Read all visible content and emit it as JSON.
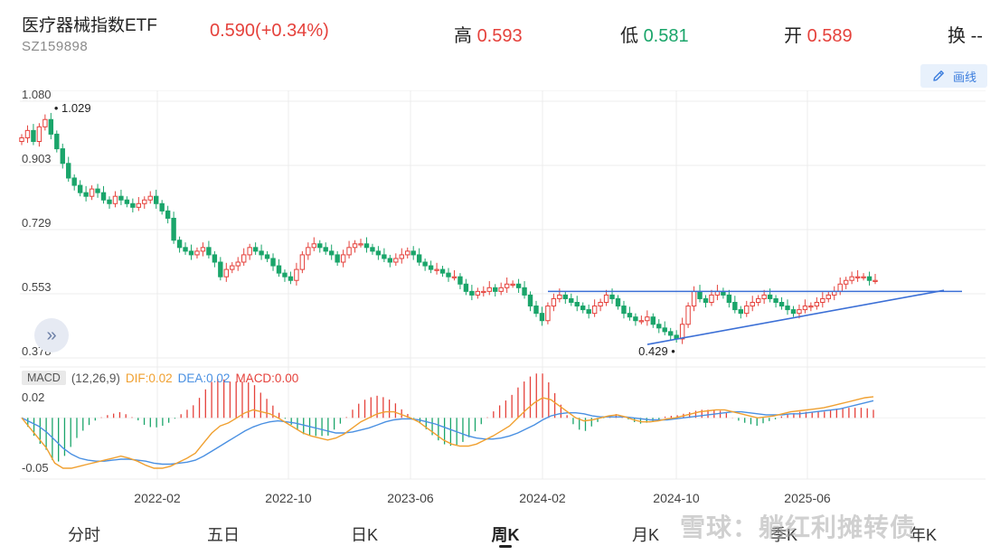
{
  "header": {
    "title": "医疗器械指数ETF",
    "code": "SZ159898",
    "price": "0.590(+0.34%)",
    "high_label": "高",
    "high_value": "0.593",
    "low_label": "低",
    "low_value": "0.581",
    "open_label": "开",
    "open_value": "0.589",
    "turnover_label": "换",
    "turnover_value": "--"
  },
  "toolbar": {
    "draw_label": "画线"
  },
  "macd": {
    "tag": "MACD",
    "params": "(12,26,9)",
    "dif": "DIF:0.02",
    "dea": "DEA:0.02",
    "macd": "MACD:0.00"
  },
  "tabs": [
    "分时",
    "五日",
    "日K",
    "周K",
    "月K",
    "季K",
    "年K"
  ],
  "active_tab": "周K",
  "watermark": "雪球：躺红利摊转债",
  "colors": {
    "up": "#e5413b",
    "down": "#1aa56a",
    "trendline": "#3b6fd6",
    "dif": "#f0a030",
    "dea": "#4a90e2"
  },
  "chart_data": {
    "type": "candlestick",
    "y_ticks": [
      "1.080",
      "0.903",
      "0.729",
      "0.553",
      "0.378"
    ],
    "ylim": [
      0.378,
      1.08
    ],
    "x_ticks": [
      "2022-02",
      "2022-10",
      "2023-06",
      "2024-02",
      "2024-10",
      "2025-06"
    ],
    "max_annotation": "1.029",
    "min_annotation": "0.429",
    "macd_y_ticks": [
      "0.02",
      "-0.05"
    ],
    "macd_ylim": [
      -0.05,
      0.02
    ],
    "horizontal_line_value": 0.56,
    "close_series": [
      0.98,
      1.0,
      0.97,
      1.01,
      1.03,
      0.99,
      0.95,
      0.91,
      0.87,
      0.85,
      0.83,
      0.82,
      0.84,
      0.83,
      0.81,
      0.8,
      0.82,
      0.81,
      0.8,
      0.79,
      0.8,
      0.81,
      0.82,
      0.8,
      0.78,
      0.76,
      0.7,
      0.68,
      0.67,
      0.66,
      0.67,
      0.68,
      0.66,
      0.64,
      0.6,
      0.62,
      0.63,
      0.64,
      0.66,
      0.68,
      0.67,
      0.66,
      0.65,
      0.63,
      0.61,
      0.6,
      0.59,
      0.62,
      0.66,
      0.68,
      0.69,
      0.68,
      0.67,
      0.66,
      0.64,
      0.66,
      0.68,
      0.69,
      0.69,
      0.68,
      0.67,
      0.66,
      0.65,
      0.64,
      0.65,
      0.66,
      0.67,
      0.66,
      0.64,
      0.63,
      0.62,
      0.62,
      0.61,
      0.6,
      0.6,
      0.58,
      0.56,
      0.55,
      0.56,
      0.56,
      0.57,
      0.56,
      0.57,
      0.58,
      0.58,
      0.57,
      0.55,
      0.52,
      0.5,
      0.48,
      0.52,
      0.54,
      0.55,
      0.54,
      0.53,
      0.52,
      0.51,
      0.5,
      0.52,
      0.53,
      0.55,
      0.54,
      0.52,
      0.5,
      0.49,
      0.48,
      0.48,
      0.49,
      0.47,
      0.46,
      0.45,
      0.44,
      0.43,
      0.47,
      0.52,
      0.56,
      0.54,
      0.53,
      0.55,
      0.56,
      0.55,
      0.53,
      0.51,
      0.5,
      0.52,
      0.53,
      0.54,
      0.55,
      0.54,
      0.53,
      0.52,
      0.51,
      0.5,
      0.51,
      0.52,
      0.52,
      0.53,
      0.54,
      0.55,
      0.56,
      0.58,
      0.59,
      0.6,
      0.6,
      0.6,
      0.59,
      0.59
    ],
    "dif_series": [
      0.0,
      -0.01,
      -0.02,
      -0.03,
      -0.045,
      -0.05,
      -0.05,
      -0.048,
      -0.046,
      -0.044,
      -0.042,
      -0.04,
      -0.038,
      -0.04,
      -0.043,
      -0.047,
      -0.05,
      -0.05,
      -0.048,
      -0.044,
      -0.04,
      -0.035,
      -0.025,
      -0.015,
      -0.008,
      -0.005,
      0.0,
      0.005,
      0.008,
      0.006,
      0.004,
      0.0,
      -0.005,
      -0.01,
      -0.015,
      -0.018,
      -0.02,
      -0.022,
      -0.02,
      -0.016,
      -0.01,
      -0.004,
      0.0,
      0.004,
      0.006,
      0.006,
      0.003,
      0.0,
      -0.004,
      -0.01,
      -0.016,
      -0.022,
      -0.026,
      -0.028,
      -0.028,
      -0.026,
      -0.022,
      -0.018,
      -0.013,
      -0.008,
      0.0,
      0.008,
      0.015,
      0.02,
      0.018,
      0.012,
      0.006,
      0.0,
      -0.003,
      -0.002,
      0.0,
      0.002,
      0.003,
      0.001,
      -0.002,
      -0.004,
      -0.004,
      -0.003,
      -0.001,
      0.0,
      0.002,
      0.004,
      0.006,
      0.007,
      0.008,
      0.008,
      0.006,
      0.004,
      0.002,
      0.0,
      0.001,
      0.002,
      0.004,
      0.006,
      0.007,
      0.008,
      0.009,
      0.01,
      0.012,
      0.014,
      0.016,
      0.018,
      0.02,
      0.021
    ],
    "dea_series": [
      0.0,
      -0.004,
      -0.008,
      -0.014,
      -0.022,
      -0.03,
      -0.036,
      -0.04,
      -0.042,
      -0.043,
      -0.043,
      -0.042,
      -0.041,
      -0.041,
      -0.042,
      -0.043,
      -0.045,
      -0.046,
      -0.046,
      -0.045,
      -0.044,
      -0.042,
      -0.038,
      -0.033,
      -0.028,
      -0.023,
      -0.018,
      -0.013,
      -0.009,
      -0.006,
      -0.004,
      -0.003,
      -0.004,
      -0.005,
      -0.007,
      -0.009,
      -0.011,
      -0.013,
      -0.015,
      -0.015,
      -0.014,
      -0.012,
      -0.01,
      -0.007,
      -0.004,
      -0.002,
      -0.001,
      -0.001,
      -0.002,
      -0.004,
      -0.006,
      -0.009,
      -0.012,
      -0.015,
      -0.018,
      -0.02,
      -0.021,
      -0.021,
      -0.02,
      -0.018,
      -0.015,
      -0.011,
      -0.007,
      -0.002,
      0.002,
      0.004,
      0.005,
      0.005,
      0.004,
      0.002,
      0.001,
      0.001,
      0.001,
      0.001,
      0.0,
      -0.001,
      -0.002,
      -0.002,
      -0.002,
      -0.001,
      0.0,
      0.001,
      0.002,
      0.003,
      0.004,
      0.005,
      0.006,
      0.006,
      0.005,
      0.004,
      0.003,
      0.003,
      0.003,
      0.004,
      0.004,
      0.005,
      0.006,
      0.007,
      0.008,
      0.009,
      0.011,
      0.013,
      0.015,
      0.017
    ]
  }
}
